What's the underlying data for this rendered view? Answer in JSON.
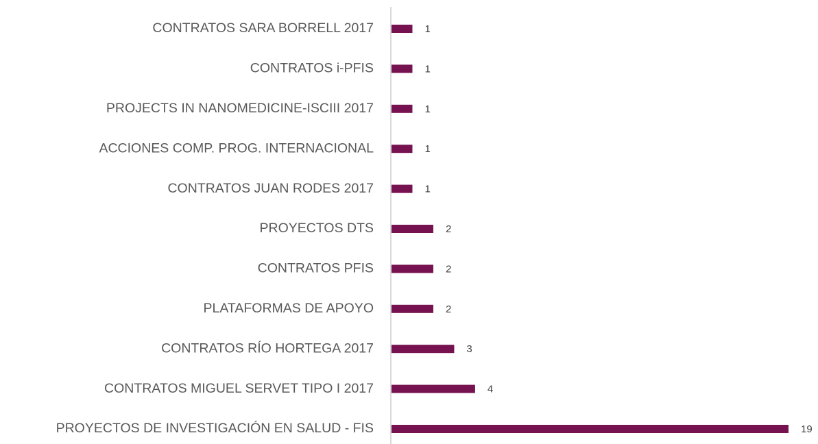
{
  "chart_data": {
    "type": "bar",
    "orientation": "horizontal",
    "categories": [
      "CONTRATOS SARA BORRELL 2017",
      "CONTRATOS i-PFIS",
      "PROJECTS IN NANOMEDICINE-ISCIII 2017",
      "ACCIONES COMP. PROG. INTERNACIONAL",
      "CONTRATOS JUAN RODES 2017",
      "PROYECTOS DTS",
      "CONTRATOS PFIS",
      "PLATAFORMAS DE APOYO",
      "CONTRATOS RÍO HORTEGA 2017",
      "CONTRATOS MIGUEL SERVET TIPO I 2017",
      "PROYECTOS DE INVESTIGACIÓN EN SALUD - FIS"
    ],
    "values": [
      1,
      1,
      1,
      1,
      1,
      2,
      2,
      2,
      3,
      4,
      19
    ],
    "color": "#76124f",
    "xlim": [
      0,
      19
    ]
  }
}
